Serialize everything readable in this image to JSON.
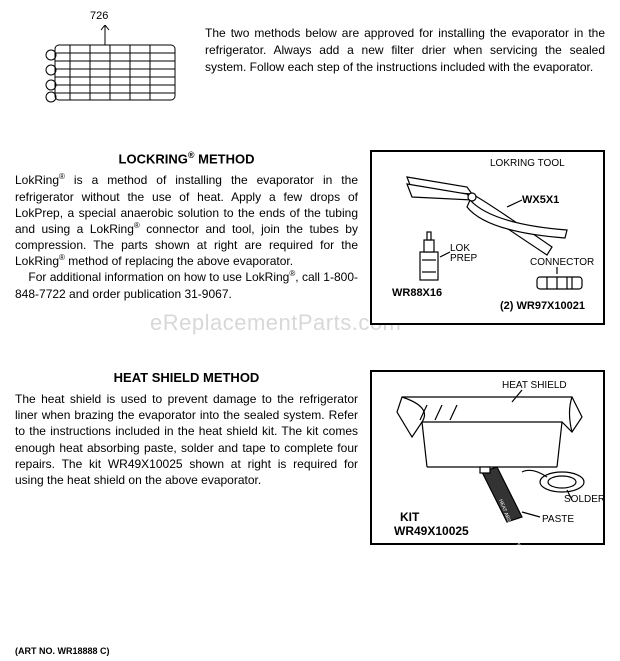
{
  "evaporator": {
    "part_label": "726",
    "intro": "The two methods below are approved for installing the evaporator in the refrigerator.  Always add a new filter drier when servicing the sealed system.  Follow each step of the instructions included with the evaporator."
  },
  "lockring": {
    "title_prefix": "LOCKRING",
    "title_suffix": " METHOD",
    "body_html": "   LokRing<sup>®</sup> is a method of installing the evaporator in the refrigerator without the use of heat.  Apply a few drops of LokPrep, a special anaerobic solution to the ends of the tubing and using a LokRing<sup>®</sup> connector and tool, join the tubes by compression.  The parts shown at right are required for the LokRing<sup>®</sup> method of replacing the above evaporator.\n   For additional information on how to use LokRing<sup>®</sup>, call 1-800-848-7722 and order publication 31-9067.",
    "figure": {
      "tool_label": "LOKRING TOOL",
      "tool_part": "WX5X1",
      "prep_label": "LOK PREP",
      "prep_part": "WR88X16",
      "connector_label": "CONNECTOR",
      "connector_part": "(2) WR97X10021"
    }
  },
  "heatshield": {
    "title": "HEAT SHIELD METHOD",
    "body": "   The heat shield is used to prevent damage to the refrigerator liner when brazing the evaporator into the sealed system.  Refer to the instructions included in the heat shield kit.  The kit comes enough heat absorbing paste, solder and tape to complete four repairs.  The kit WR49X10025 shown at right is required for using the heat shield on the above evaporator.",
    "figure": {
      "shield_label": "HEAT SHIELD",
      "solder_label": "SOLDER",
      "paste_label": "PASTE",
      "kit_label": "KIT",
      "kit_part": "WR49X10025"
    }
  },
  "art_no": "(ART NO. WR18888 C)",
  "watermark": "eReplacementParts.com",
  "colors": {
    "stroke": "#000000",
    "background": "#ffffff",
    "watermark": "#d8d8d8"
  }
}
